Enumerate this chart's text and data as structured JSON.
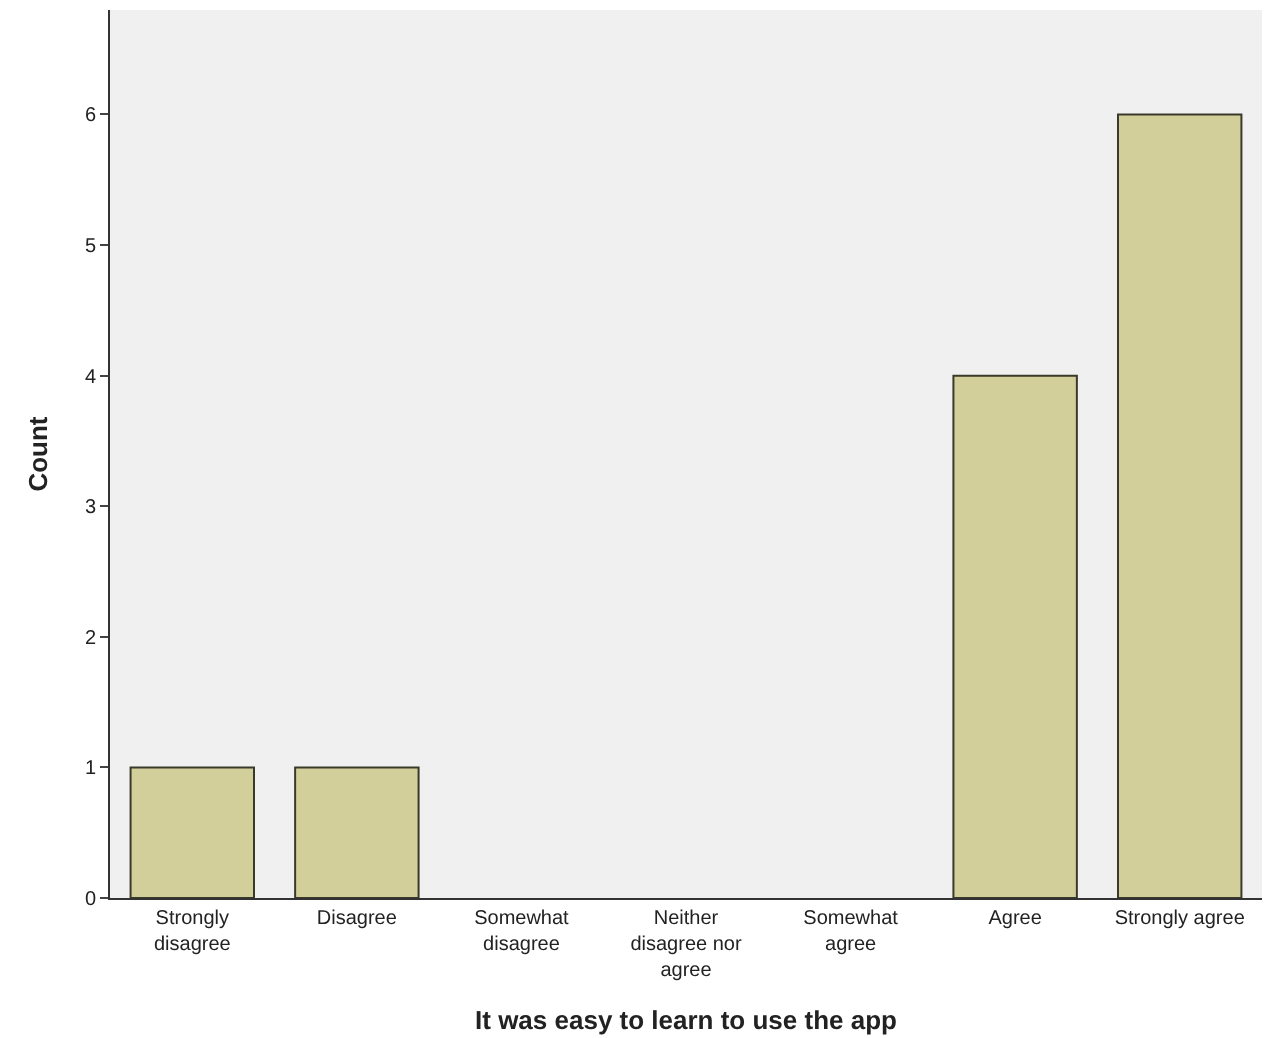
{
  "chart_data": {
    "type": "bar",
    "xlabel": "It was easy to learn to use the app",
    "ylabel": "Count",
    "categories": [
      "Strongly\ndisagree",
      "Disagree",
      "Somewhat\ndisagree",
      "Neither\ndisagree nor\nagree",
      "Somewhat\nagree",
      "Agree",
      "Strongly agree"
    ],
    "values": [
      1,
      1,
      0,
      0,
      0,
      4,
      6
    ],
    "color": "#d3cf9a",
    "ylim": [
      0,
      6.8
    ],
    "yticks": [
      0,
      1,
      2,
      3,
      4,
      5,
      6
    ],
    "grid": false
  }
}
